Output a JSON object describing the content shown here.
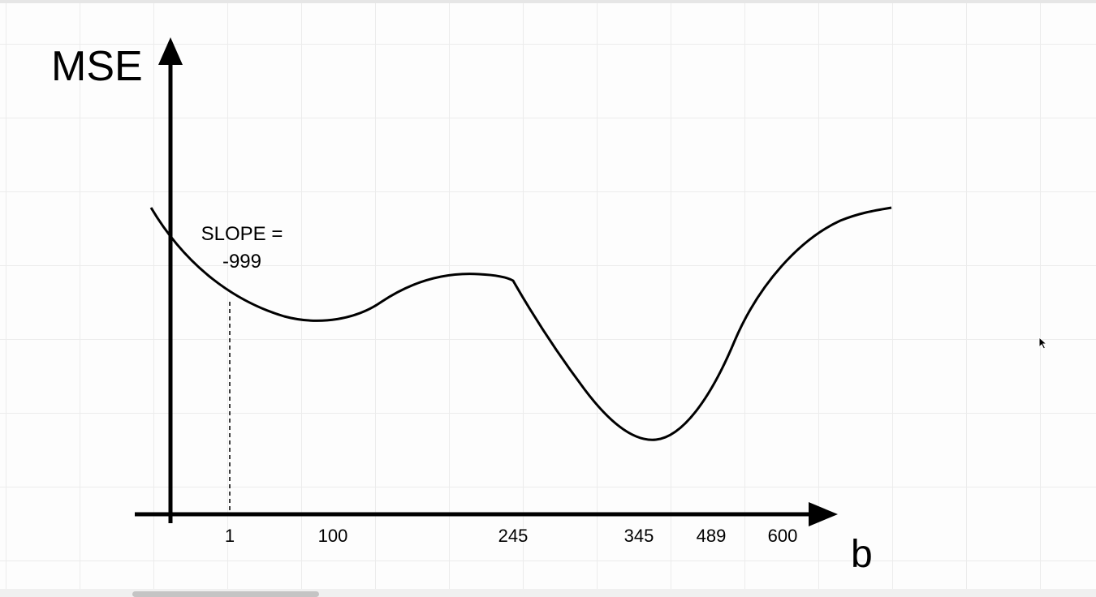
{
  "axes": {
    "y_label": "MSE",
    "x_label": "b"
  },
  "x_ticks": [
    "1",
    "100",
    "245",
    "345",
    "489",
    "600"
  ],
  "annotation": {
    "line1": "SLOPE =",
    "line2": "-999"
  },
  "colors": {
    "ink": "#000000",
    "grid": "#ececec"
  },
  "icons": {
    "cursor": "mouse-pointer-icon"
  }
}
